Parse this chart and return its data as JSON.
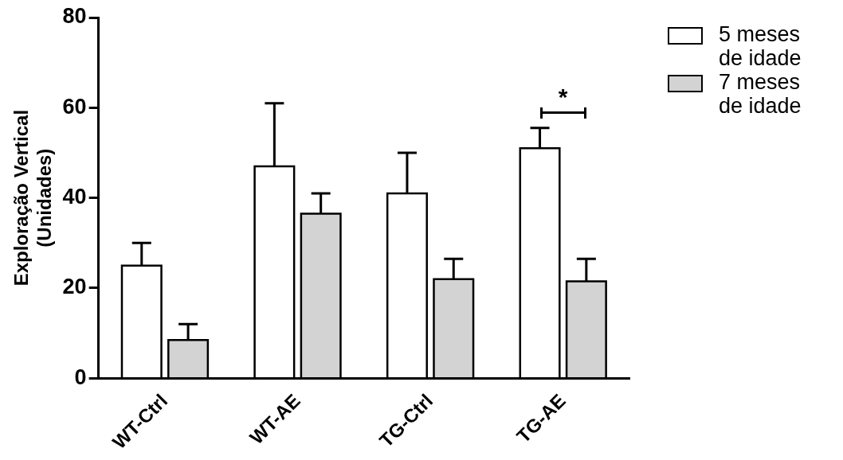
{
  "chart_data": {
    "type": "bar",
    "ylabel": "Exploração Vertical\n(Unidades)",
    "categories": [
      "WT-Ctrl",
      "WT-AE",
      "TG-Ctrl",
      "TG-AE"
    ],
    "series": [
      {
        "name": "5 meses de idade",
        "color": "#ffffff",
        "values": [
          25,
          47,
          41,
          51
        ],
        "errors": [
          [
            25,
            30
          ],
          [
            47,
            61
          ],
          [
            41,
            50
          ],
          [
            51,
            55.5
          ]
        ]
      },
      {
        "name": "7 meses de idade",
        "color": "#d3d3d3",
        "values": [
          8.5,
          36.5,
          22,
          21.5
        ],
        "errors": [
          [
            8.5,
            12
          ],
          [
            36.5,
            41
          ],
          [
            22,
            26.5
          ],
          [
            21.5,
            26.5
          ]
        ]
      }
    ],
    "ylim": [
      0,
      80
    ],
    "yticks": [
      0,
      20,
      40,
      60,
      80
    ],
    "grid": false,
    "legend": "top right",
    "annotations": [
      "*"
    ]
  }
}
